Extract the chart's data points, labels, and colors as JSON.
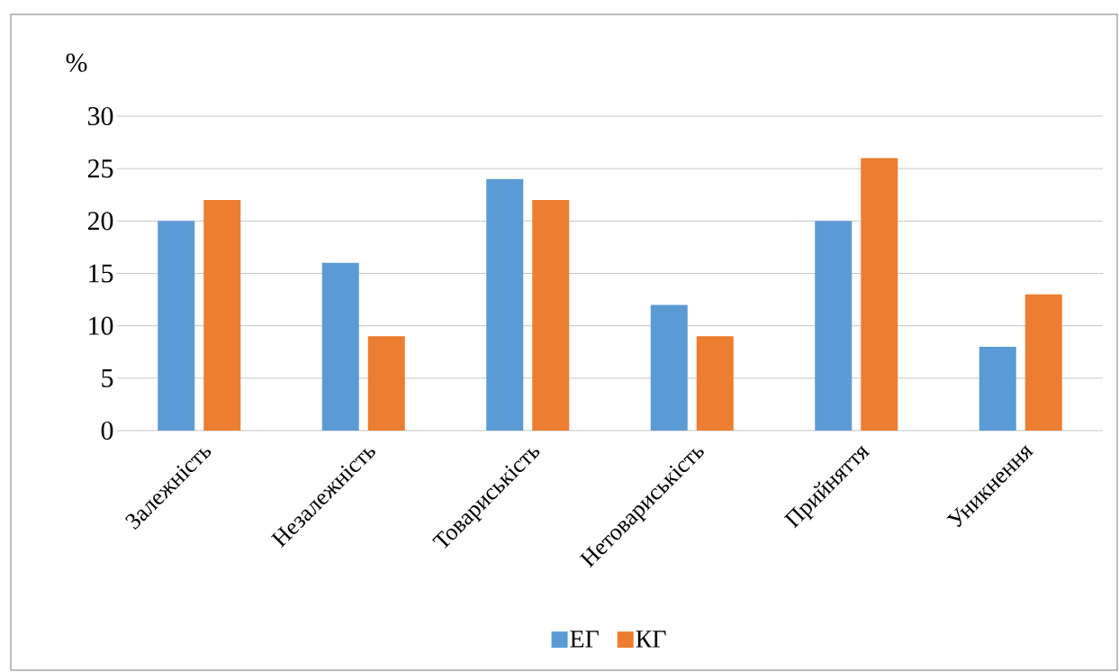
{
  "chart_data": {
    "type": "bar",
    "ylabel": "%",
    "categories": [
      "Залежність",
      "Незалежність",
      "Товариськість",
      "Нетовариськість",
      "Прийняття",
      "Уникнення"
    ],
    "series": [
      {
        "name": "ЕГ",
        "color": "#5b9bd5",
        "values": [
          20,
          16,
          24,
          12,
          20,
          8
        ]
      },
      {
        "name": "КГ",
        "color": "#ed7d31",
        "values": [
          22,
          9,
          22,
          9,
          26,
          13
        ]
      }
    ],
    "ylim": [
      0,
      30
    ],
    "yticks": [
      0,
      5,
      10,
      15,
      20,
      25,
      30
    ],
    "grid": "y",
    "legend": "bottom"
  }
}
